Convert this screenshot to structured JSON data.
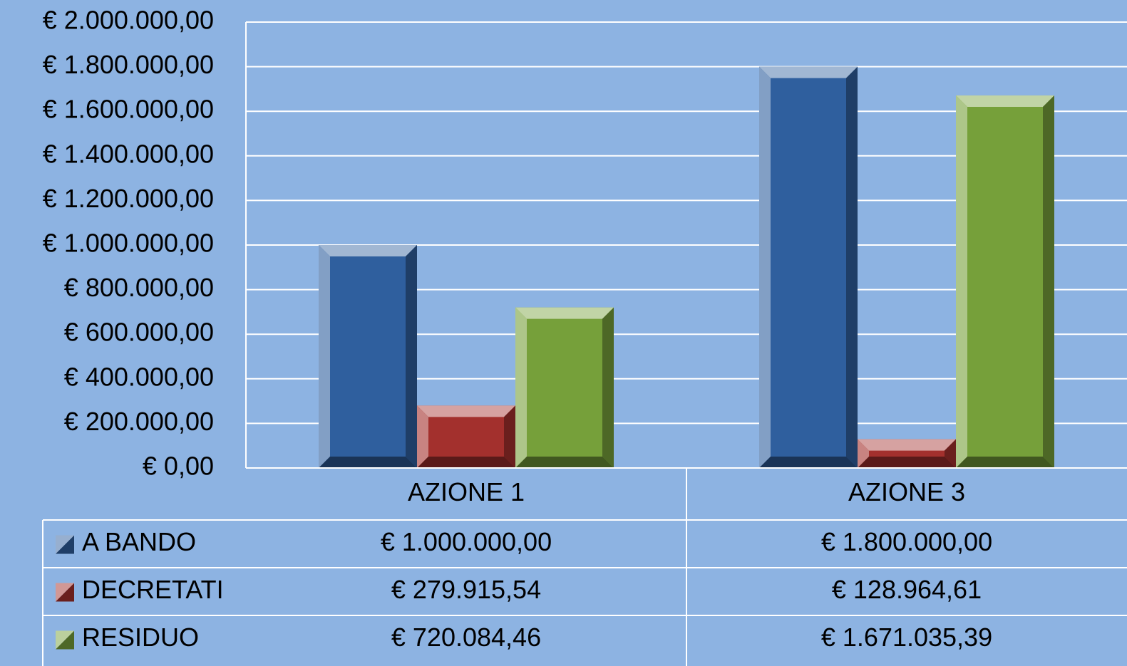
{
  "chart_data": {
    "type": "bar",
    "categories": [
      "AZIONE 1",
      "AZIONE 3"
    ],
    "series": [
      {
        "name": "A BANDO",
        "color": "#2f5f9e",
        "values": [
          1000000,
          1800000
        ],
        "value_labels": [
          "€ 1.000.000,00",
          "€ 1.800.000,00"
        ]
      },
      {
        "name": "DECRETATI",
        "color": "#a3302d",
        "values": [
          279915.54,
          128964.61
        ],
        "value_labels": [
          "€ 279.915,54",
          "€ 128.964,61"
        ]
      },
      {
        "name": "RESIDUO",
        "color": "#76a03a",
        "values": [
          720084.46,
          1671035.39
        ],
        "value_labels": [
          "€ 720.084,46",
          "€ 1.671.035,39"
        ]
      }
    ],
    "ylim": [
      0,
      2000000
    ],
    "yticks": [
      {
        "value": 0,
        "label": "€ 0,00"
      },
      {
        "value": 200000,
        "label": "€ 200.000,00"
      },
      {
        "value": 400000,
        "label": "€ 400.000,00"
      },
      {
        "value": 600000,
        "label": "€ 600.000,00"
      },
      {
        "value": 800000,
        "label": "€ 800.000,00"
      },
      {
        "value": 1000000,
        "label": "€ 1.000.000,00"
      },
      {
        "value": 1200000,
        "label": "€ 1.200.000,00"
      },
      {
        "value": 1400000,
        "label": "€ 1.400.000,00"
      },
      {
        "value": 1600000,
        "label": "€ 1.600.000,00"
      },
      {
        "value": 1800000,
        "label": "€ 1.800.000,00"
      },
      {
        "value": 2000000,
        "label": "€ 2.000.000,00"
      }
    ],
    "grid": true,
    "data_table": true
  }
}
